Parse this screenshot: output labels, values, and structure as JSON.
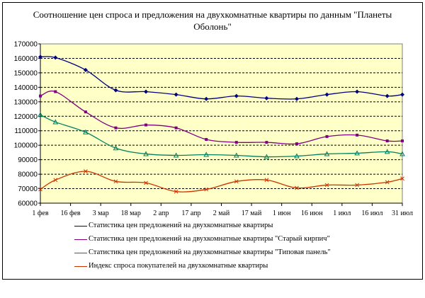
{
  "chart_data": {
    "type": "line",
    "title": "Соотношение цен спроса и предложения на двухкомнатные квартиры     по данным \"Планеты Оболонь\"",
    "categories": [
      "1 фев",
      "16 фев",
      "3 мар",
      "18 мар",
      "2 апр",
      "17 апр",
      "2 май",
      "17 май",
      "1 июн",
      "16 июн",
      "1 июл",
      "16 июл",
      "31 июл"
    ],
    "ylim": [
      60000,
      170000
    ],
    "yticks": [
      60000,
      70000,
      80000,
      90000,
      100000,
      110000,
      120000,
      130000,
      140000,
      150000,
      160000,
      170000
    ],
    "grid": true,
    "legend_position": "bottom",
    "series": [
      {
        "name": "Статистика цен предложений на двухкомнатные квартиры",
        "color": "#000080",
        "marker": "diamond",
        "x": [
          0,
          0.5,
          1.5,
          2.5,
          3.5,
          4.5,
          5.5,
          6.5,
          7.5,
          8.5,
          9.5,
          10.5,
          11.5,
          12
        ],
        "values": [
          161000,
          160500,
          152000,
          138000,
          137000,
          135000,
          132000,
          134000,
          132500,
          132000,
          135000,
          137000,
          134000,
          135000
        ]
      },
      {
        "name": "Статистика цен предложений на двухкомнатные квартиры \"Старый кирпич\"",
        "color": "#800080",
        "marker": "square",
        "x": [
          0,
          0.5,
          1.5,
          2.5,
          3.5,
          4.5,
          5.5,
          6.5,
          7.5,
          8.5,
          9.5,
          10.5,
          11.5,
          12
        ],
        "values": [
          134000,
          137000,
          123000,
          112000,
          114000,
          112000,
          104000,
          102000,
          102000,
          101000,
          106000,
          107000,
          103000,
          103000
        ]
      },
      {
        "name": "Статистика цен предложений на двухкомнатные квартиры \"Типовая панель\"",
        "color": "#008060",
        "marker": "triangle",
        "x": [
          0,
          0.5,
          1.5,
          2.5,
          3.5,
          4.5,
          5.5,
          6.5,
          7.5,
          8.5,
          9.5,
          10.5,
          11.5,
          12
        ],
        "values": [
          121000,
          116000,
          109000,
          98000,
          94000,
          93000,
          93500,
          93000,
          92000,
          92500,
          94000,
          94500,
          95500,
          94000
        ]
      },
      {
        "name": "Индекс спроса покупателей на двухкомнатные квартиры",
        "color": "#cc3300",
        "marker": "x",
        "x": [
          0,
          0.5,
          1.5,
          2.5,
          3.5,
          4.5,
          5.5,
          6.5,
          7.5,
          8.5,
          9.5,
          10.5,
          11.5,
          12
        ],
        "values": [
          69500,
          76000,
          82000,
          75000,
          74000,
          68000,
          69500,
          75000,
          76000,
          70500,
          72500,
          72500,
          74500,
          77000
        ]
      }
    ]
  }
}
